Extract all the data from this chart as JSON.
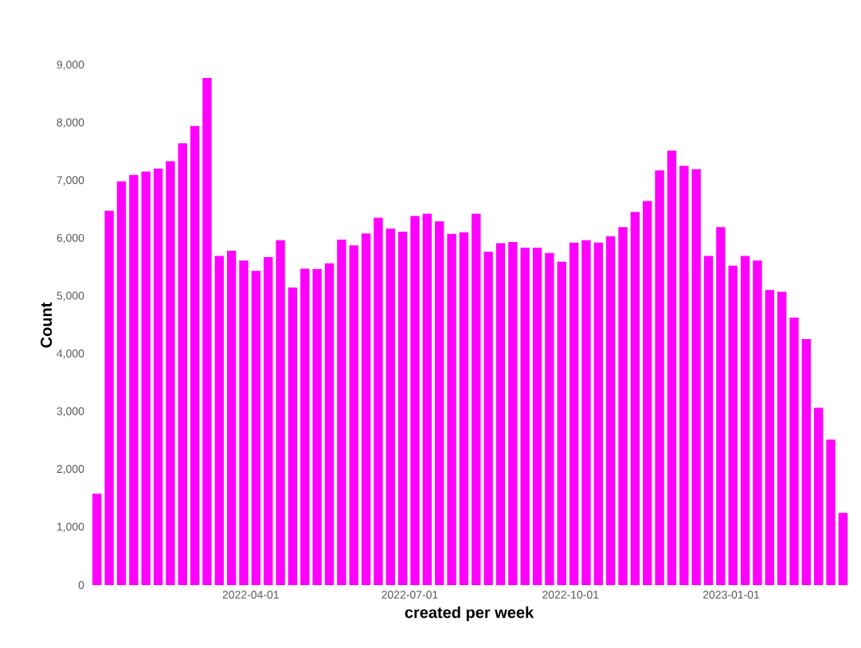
{
  "chart_data": {
    "type": "bar",
    "xlabel": "created per week",
    "ylabel": "Count",
    "color": "#ff00ff",
    "x": [
      "2022-01-03",
      "2022-01-10",
      "2022-01-17",
      "2022-01-24",
      "2022-01-31",
      "2022-02-07",
      "2022-02-14",
      "2022-02-21",
      "2022-02-28",
      "2022-03-07",
      "2022-03-14",
      "2022-03-21",
      "2022-03-28",
      "2022-04-04",
      "2022-04-11",
      "2022-04-18",
      "2022-04-25",
      "2022-05-02",
      "2022-05-09",
      "2022-05-16",
      "2022-05-23",
      "2022-05-30",
      "2022-06-06",
      "2022-06-13",
      "2022-06-20",
      "2022-06-27",
      "2022-07-04",
      "2022-07-11",
      "2022-07-18",
      "2022-07-25",
      "2022-08-01",
      "2022-08-08",
      "2022-08-15",
      "2022-08-22",
      "2022-08-29",
      "2022-09-05",
      "2022-09-12",
      "2022-09-19",
      "2022-09-26",
      "2022-10-03",
      "2022-10-10",
      "2022-10-17",
      "2022-10-24",
      "2022-10-31",
      "2022-11-07",
      "2022-11-14",
      "2022-11-21",
      "2022-11-28",
      "2022-12-05",
      "2022-12-12",
      "2022-12-19",
      "2022-12-26",
      "2023-01-02",
      "2023-01-09",
      "2023-01-16",
      "2023-01-23",
      "2023-01-30",
      "2023-02-06",
      "2023-02-13",
      "2023-02-20",
      "2023-02-27",
      "2023-03-06"
    ],
    "values": [
      1580,
      6480,
      6990,
      7100,
      7160,
      7210,
      7340,
      7650,
      7950,
      8780,
      5700,
      5790,
      5620,
      5440,
      5680,
      5970,
      5150,
      5480,
      5470,
      5570,
      5980,
      5880,
      6090,
      6360,
      6170,
      6120,
      6390,
      6430,
      6300,
      6080,
      6110,
      6430,
      5770,
      5920,
      5940,
      5840,
      5840,
      5750,
      5600,
      5930,
      5970,
      5930,
      6040,
      6200,
      6460,
      6650,
      7180,
      7520,
      7260,
      7200,
      5700,
      6200,
      5530,
      5700,
      5620,
      5110,
      5080,
      4630,
      4260,
      3070,
      2520,
      1250
    ],
    "xlim": [
      "2021-12-30",
      "2023-03-09"
    ],
    "xticks": [
      "2022-04-01",
      "2022-07-01",
      "2022-10-01",
      "2023-01-01"
    ],
    "ylim": [
      0,
      9000
    ],
    "yticks": [
      0,
      {
        "value": 1000,
        "label": "1,000"
      },
      {
        "value": 2000,
        "label": "2,000"
      },
      {
        "value": 3000,
        "label": "3,000"
      },
      {
        "value": 4000,
        "label": "4,000"
      },
      {
        "value": 5000,
        "label": "5,000"
      },
      {
        "value": 6000,
        "label": "6,000"
      },
      {
        "value": 7000,
        "label": "7,000"
      },
      {
        "value": 8000,
        "label": "8,000"
      },
      {
        "value": 9000,
        "label": "9,000"
      }
    ],
    "grid": false
  }
}
